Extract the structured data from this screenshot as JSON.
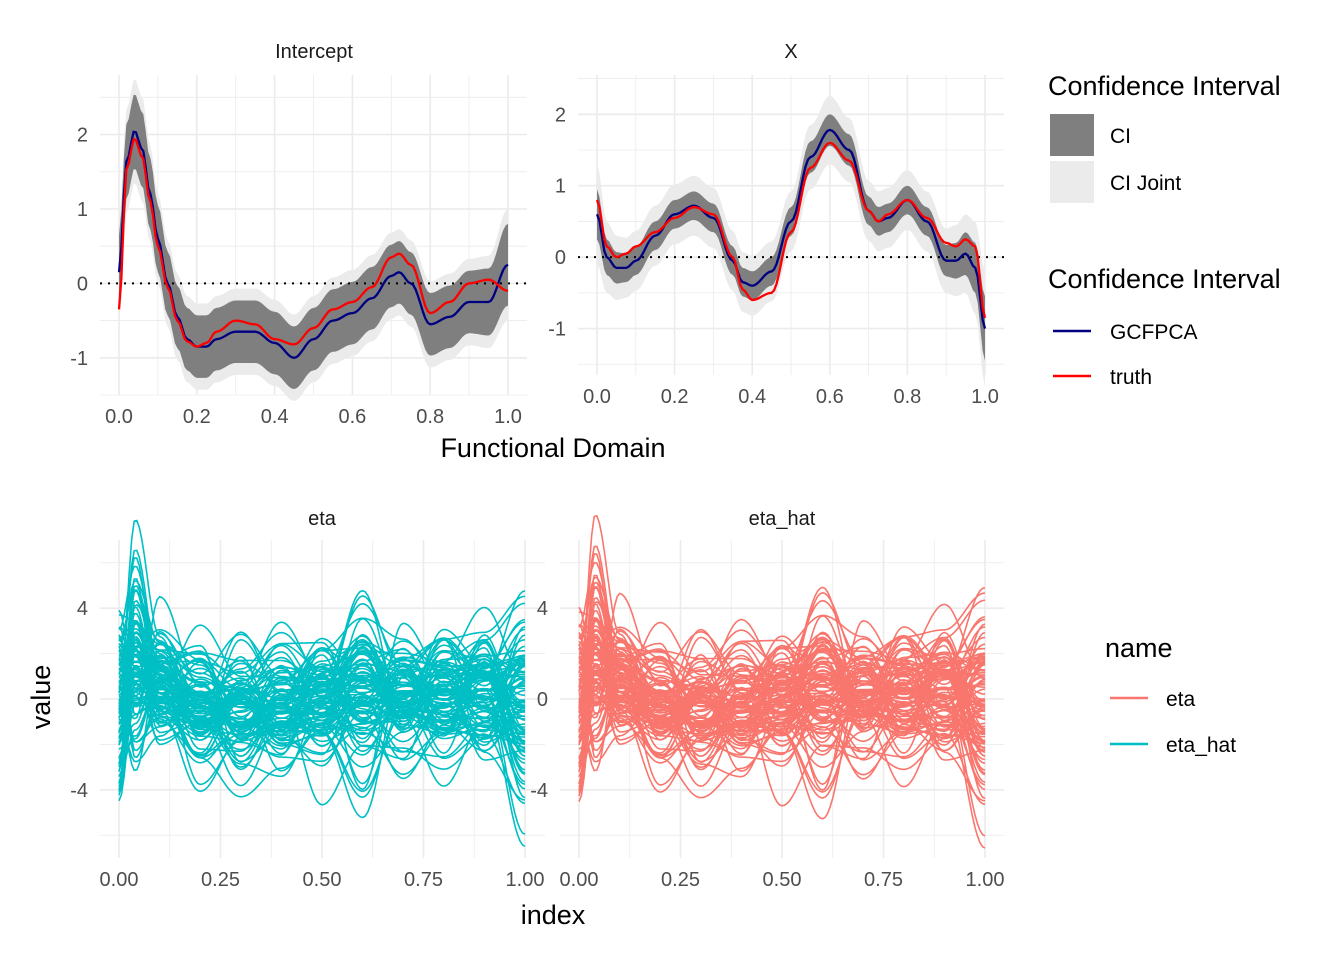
{
  "colors": {
    "ci": "#7f7f7f",
    "ci_joint": "#ebebeb",
    "gcfpca": "#000080",
    "truth": "#ff0000",
    "eta": "#f8766d",
    "eta_hat": "#00bfc4",
    "grid": "#ebebeb"
  },
  "top_xlabel": "Functional Domain",
  "bottom_xlabel": "index",
  "bottom_ylabel": "value",
  "legends": {
    "fill": {
      "title": "Confidence Interval",
      "items": [
        {
          "label": "CI",
          "color": "#7f7f7f"
        },
        {
          "label": "CI Joint",
          "color": "#ebebeb"
        }
      ]
    },
    "line": {
      "title": "Confidence Interval",
      "items": [
        {
          "label": "GCFPCA",
          "color": "#000080"
        },
        {
          "label": "truth",
          "color": "#ff0000"
        }
      ]
    },
    "name": {
      "title": "name",
      "items": [
        {
          "label": "eta",
          "color": "#f8766d"
        },
        {
          "label": "eta_hat",
          "color": "#00bfc4"
        }
      ]
    }
  },
  "chart_data": [
    {
      "type": "line",
      "title": "Intercept",
      "xlim": [
        0,
        1
      ],
      "ylim": [
        -1.5,
        2.8
      ],
      "x_ticks": [
        "0.0",
        "0.2",
        "0.4",
        "0.6",
        "0.8",
        "1.0"
      ],
      "y_ticks": [
        "-1",
        "0",
        "1",
        "2"
      ],
      "reference_line": 0,
      "x": [
        0.0,
        0.02,
        0.04,
        0.06,
        0.08,
        0.1,
        0.125,
        0.15,
        0.175,
        0.2,
        0.225,
        0.25,
        0.3,
        0.35,
        0.4,
        0.45,
        0.5,
        0.55,
        0.6,
        0.65,
        0.7,
        0.72,
        0.75,
        0.8,
        0.85,
        0.9,
        0.95,
        1.0
      ],
      "series": [
        {
          "name": "GCFPCA",
          "values": [
            0.15,
            1.65,
            2.05,
            1.8,
            1.2,
            0.6,
            0.0,
            -0.45,
            -0.75,
            -0.85,
            -0.85,
            -0.75,
            -0.65,
            -0.65,
            -0.8,
            -1.0,
            -0.75,
            -0.5,
            -0.4,
            -0.2,
            0.1,
            0.15,
            0.0,
            -0.55,
            -0.45,
            -0.25,
            -0.25,
            0.25
          ]
        },
        {
          "name": "truth",
          "values": [
            -0.35,
            1.55,
            1.95,
            1.7,
            1.1,
            0.5,
            -0.05,
            -0.5,
            -0.78,
            -0.85,
            -0.8,
            -0.65,
            -0.5,
            -0.55,
            -0.75,
            -0.82,
            -0.6,
            -0.35,
            -0.25,
            -0.05,
            0.35,
            0.4,
            0.25,
            -0.4,
            -0.25,
            0.0,
            0.05,
            -0.1
          ]
        }
      ],
      "ci_halfwidth": [
        0.5,
        0.5,
        0.5,
        0.5,
        0.48,
        0.45,
        0.43,
        0.42,
        0.42,
        0.42,
        0.42,
        0.42,
        0.42,
        0.42,
        0.42,
        0.42,
        0.42,
        0.42,
        0.42,
        0.42,
        0.42,
        0.42,
        0.42,
        0.42,
        0.42,
        0.42,
        0.45,
        0.55
      ],
      "ci_joint_halfwidth": [
        0.7,
        0.7,
        0.7,
        0.7,
        0.65,
        0.6,
        0.58,
        0.58,
        0.58,
        0.58,
        0.58,
        0.58,
        0.58,
        0.58,
        0.58,
        0.58,
        0.58,
        0.58,
        0.58,
        0.58,
        0.58,
        0.58,
        0.58,
        0.58,
        0.58,
        0.58,
        0.62,
        0.75
      ]
    },
    {
      "type": "line",
      "title": "X",
      "xlim": [
        0,
        1
      ],
      "ylim": [
        -1.65,
        2.55
      ],
      "x_ticks": [
        "0.0",
        "0.2",
        "0.4",
        "0.6",
        "0.8",
        "1.0"
      ],
      "y_ticks": [
        "-1",
        "0",
        "1",
        "2"
      ],
      "reference_line": 0,
      "x": [
        0.0,
        0.025,
        0.05,
        0.075,
        0.1,
        0.15,
        0.2,
        0.25,
        0.3,
        0.35,
        0.375,
        0.4,
        0.45,
        0.5,
        0.55,
        0.6,
        0.65,
        0.7,
        0.725,
        0.75,
        0.8,
        0.85,
        0.9,
        0.925,
        0.95,
        0.975,
        1.0
      ],
      "series": [
        {
          "name": "GCFPCA",
          "values": [
            0.6,
            0.0,
            -0.15,
            -0.15,
            -0.05,
            0.3,
            0.6,
            0.72,
            0.55,
            -0.05,
            -0.35,
            -0.4,
            -0.2,
            0.5,
            1.4,
            1.78,
            1.5,
            0.65,
            0.5,
            0.55,
            0.8,
            0.5,
            -0.05,
            -0.05,
            0.05,
            -0.15,
            -1.0
          ]
        },
        {
          "name": "truth",
          "values": [
            0.8,
            0.15,
            0.0,
            0.05,
            0.15,
            0.35,
            0.55,
            0.7,
            0.6,
            0.0,
            -0.45,
            -0.6,
            -0.5,
            0.35,
            1.25,
            1.6,
            1.35,
            0.65,
            0.5,
            0.6,
            0.8,
            0.55,
            0.2,
            0.15,
            0.25,
            0.15,
            -0.85
          ]
        }
      ],
      "ci_halfwidth": [
        0.35,
        0.25,
        0.22,
        0.2,
        0.2,
        0.2,
        0.2,
        0.2,
        0.2,
        0.2,
        0.2,
        0.2,
        0.2,
        0.2,
        0.22,
        0.22,
        0.22,
        0.2,
        0.2,
        0.2,
        0.2,
        0.2,
        0.22,
        0.25,
        0.3,
        0.35,
        0.45
      ],
      "ci_joint_halfwidth": [
        0.7,
        0.5,
        0.45,
        0.42,
        0.42,
        0.42,
        0.42,
        0.42,
        0.42,
        0.42,
        0.42,
        0.42,
        0.42,
        0.42,
        0.45,
        0.48,
        0.45,
        0.42,
        0.42,
        0.42,
        0.42,
        0.42,
        0.45,
        0.5,
        0.55,
        0.65,
        0.8
      ]
    },
    {
      "type": "line",
      "title": "eta",
      "color": "#00bfc4",
      "xlim": [
        0,
        1
      ],
      "ylim": [
        -7.0,
        7.0
      ],
      "x_ticks": [
        "0.00",
        "0.25",
        "0.50",
        "0.75",
        "1.00"
      ],
      "y_ticks": [
        "-4",
        "0",
        "4"
      ],
      "n_curves": 100
    },
    {
      "type": "line",
      "title": "eta_hat",
      "color": "#f8766d",
      "xlim": [
        0,
        1
      ],
      "ylim": [
        -7.0,
        7.0
      ],
      "x_ticks": [
        "0.00",
        "0.25",
        "0.50",
        "0.75",
        "1.00"
      ],
      "y_ticks": [
        "-4",
        "0",
        "4"
      ],
      "n_curves": 100
    }
  ]
}
